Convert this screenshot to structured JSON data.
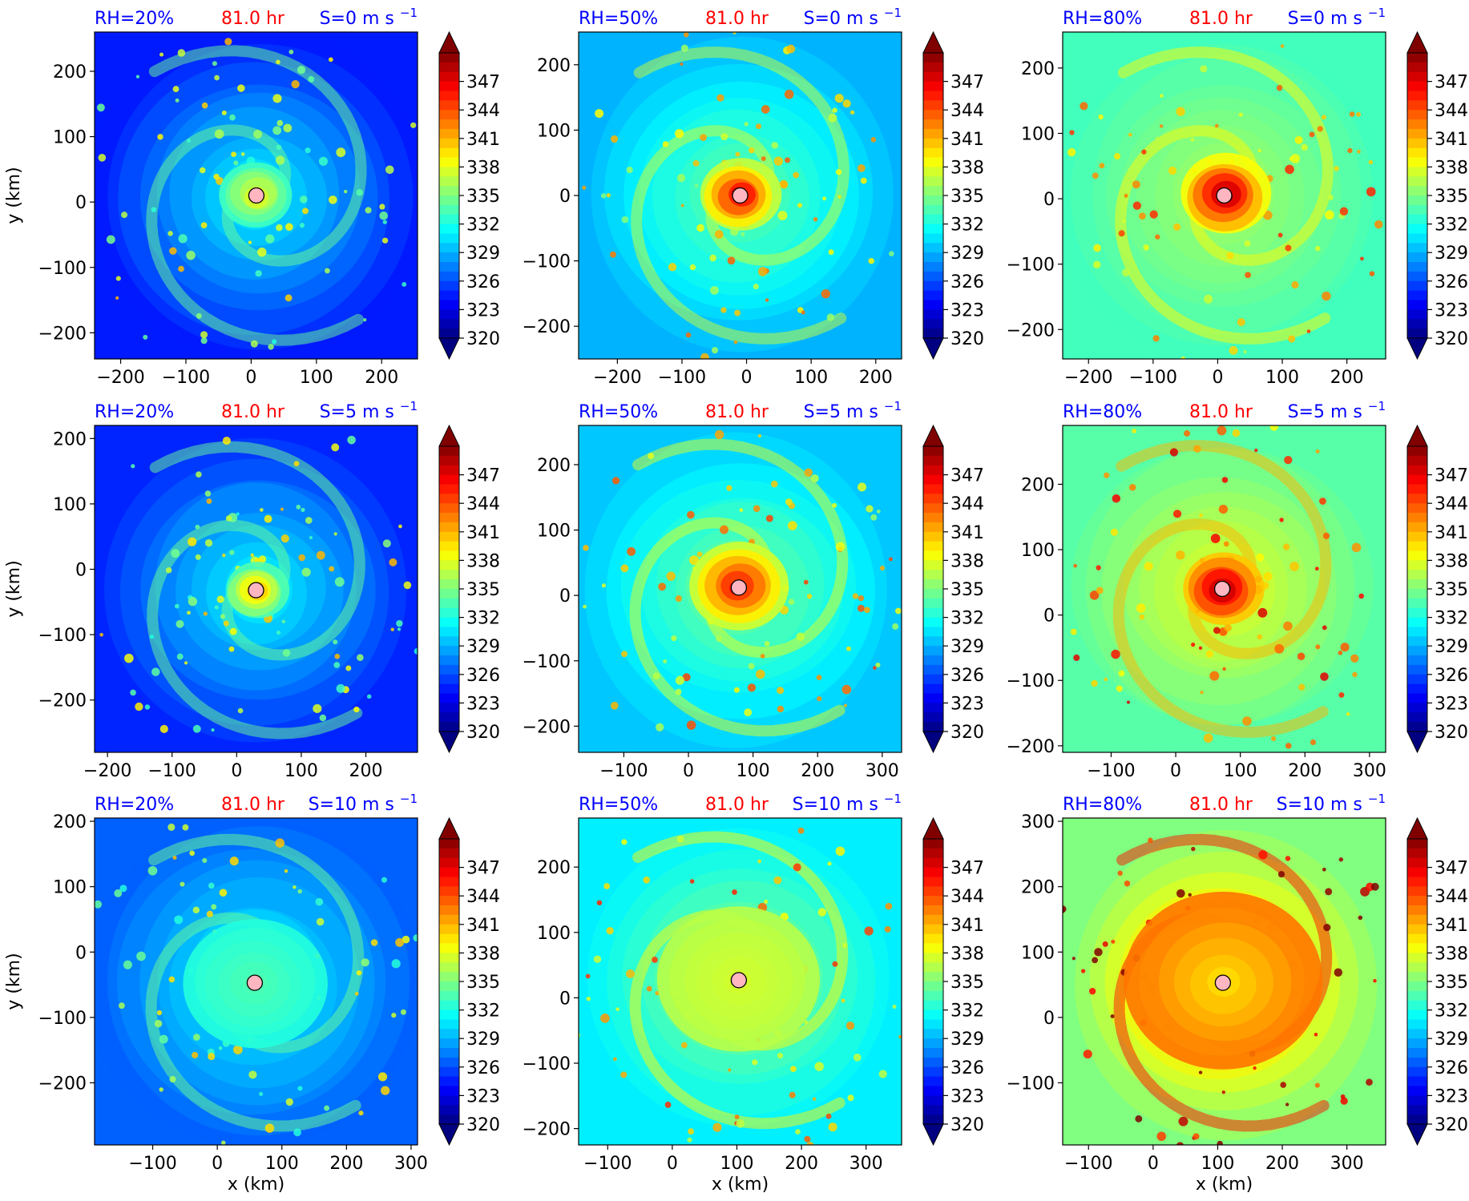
{
  "chart_data": {
    "type": "heatmap",
    "colorbar": {
      "ticks": [
        320,
        323,
        326,
        329,
        332,
        335,
        338,
        341,
        344,
        347
      ],
      "range": [
        320,
        350
      ],
      "extend": "both",
      "colormap": "jet"
    },
    "row_labels": {
      "ylabel": "y (km)"
    },
    "col_labels": {
      "xlabel": "x (km)"
    },
    "time_label": "81.0 hr",
    "colors": {
      "title_blue": "#0000ff",
      "title_red": "#ff0000",
      "center_marker": "#ffb6c1"
    },
    "panels": [
      {
        "rh": "RH=20%",
        "shear": "S=0 m s",
        "xlim": [
          -240,
          255
        ],
        "ylim": [
          -240,
          260
        ],
        "xticks": [
          -200,
          -100,
          0,
          100,
          200
        ],
        "yticks": [
          -200,
          -100,
          0,
          100,
          200
        ],
        "center": [
          8,
          10
        ],
        "base": 0.15,
        "core": 0.62,
        "core_r": 40,
        "band": 0.4,
        "show_ylabel": true,
        "show_xlabel": false
      },
      {
        "rh": "RH=50%",
        "shear": "S=0 m s",
        "xlim": [
          -260,
          240
        ],
        "ylim": [
          -250,
          250
        ],
        "xticks": [
          -200,
          -100,
          0,
          100,
          200
        ],
        "yticks": [
          -200,
          -100,
          0,
          100,
          200
        ],
        "center": [
          -10,
          0
        ],
        "base": 0.3,
        "core": 0.92,
        "core_r": 45,
        "band": 0.5,
        "show_ylabel": false,
        "show_xlabel": false
      },
      {
        "rh": "RH=80%",
        "shear": "S=0 m s",
        "xlim": [
          -240,
          260
        ],
        "ylim": [
          -245,
          255
        ],
        "xticks": [
          -200,
          -100,
          0,
          100,
          200
        ],
        "yticks": [
          -200,
          -100,
          0,
          100,
          200
        ],
        "center": [
          10,
          5
        ],
        "base": 0.44,
        "core": 0.98,
        "core_r": 50,
        "band": 0.55,
        "show_ylabel": false,
        "show_xlabel": false
      },
      {
        "rh": "RH=20%",
        "shear": "S=5 m s",
        "xlim": [
          -220,
          280
        ],
        "ylim": [
          -280,
          220
        ],
        "xticks": [
          -200,
          -100,
          0,
          100,
          200
        ],
        "yticks": [
          -200,
          -100,
          0,
          100,
          200
        ],
        "center": [
          30,
          -32
        ],
        "base": 0.16,
        "core": 0.72,
        "core_r": 35,
        "band": 0.4,
        "show_ylabel": true,
        "show_xlabel": false
      },
      {
        "rh": "RH=50%",
        "shear": "S=5 m s",
        "xlim": [
          -170,
          330
        ],
        "ylim": [
          -240,
          260
        ],
        "xticks": [
          -100,
          0,
          100,
          200,
          300
        ],
        "yticks": [
          -200,
          -100,
          0,
          100,
          200
        ],
        "center": [
          78,
          12
        ],
        "base": 0.32,
        "core": 0.88,
        "core_r": 55,
        "band": 0.52,
        "show_ylabel": false,
        "show_xlabel": false
      },
      {
        "rh": "RH=80%",
        "shear": "S=5 m s",
        "xlim": [
          -175,
          325
        ],
        "ylim": [
          -210,
          290
        ],
        "xticks": [
          -100,
          0,
          100,
          200,
          300
        ],
        "yticks": [
          -200,
          -100,
          0,
          100,
          200
        ],
        "center": [
          72,
          40
        ],
        "base": 0.46,
        "core": 0.98,
        "core_r": 45,
        "band": 0.62,
        "show_ylabel": false,
        "show_xlabel": false
      },
      {
        "rh": "RH=20%",
        "shear": "S=10 m s",
        "xlim": [
          -190,
          310
        ],
        "ylim": [
          -295,
          205
        ],
        "xticks": [
          -100,
          0,
          100,
          200,
          300
        ],
        "yticks": [
          -200,
          -100,
          0,
          100,
          200
        ],
        "center": [
          58,
          -47
        ],
        "base": 0.22,
        "core": 0.45,
        "core_r": 80,
        "band": 0.4,
        "show_ylabel": true,
        "show_xlabel": true
      },
      {
        "rh": "RH=50%",
        "shear": "S=10 m s",
        "xlim": [
          -145,
          355
        ],
        "ylim": [
          -225,
          275
        ],
        "xticks": [
          -100,
          0,
          100,
          200,
          300
        ],
        "yticks": [
          -200,
          -100,
          0,
          100,
          200
        ],
        "center": [
          103,
          27
        ],
        "base": 0.36,
        "core": 0.58,
        "core_r": 90,
        "band": 0.55,
        "show_ylabel": false,
        "show_xlabel": true
      },
      {
        "rh": "RH=80%",
        "shear": "S=10 m s",
        "xlim": [
          -140,
          360
        ],
        "ylim": [
          -195,
          305
        ],
        "xticks": [
          -100,
          0,
          100,
          200,
          300
        ],
        "yticks": [
          -100,
          0,
          100,
          200,
          300
        ],
        "center": [
          108,
          53
        ],
        "base": 0.5,
        "core": 0.66,
        "core_r": 110,
        "band": 0.78,
        "show_ylabel": false,
        "show_xlabel": true
      }
    ]
  }
}
